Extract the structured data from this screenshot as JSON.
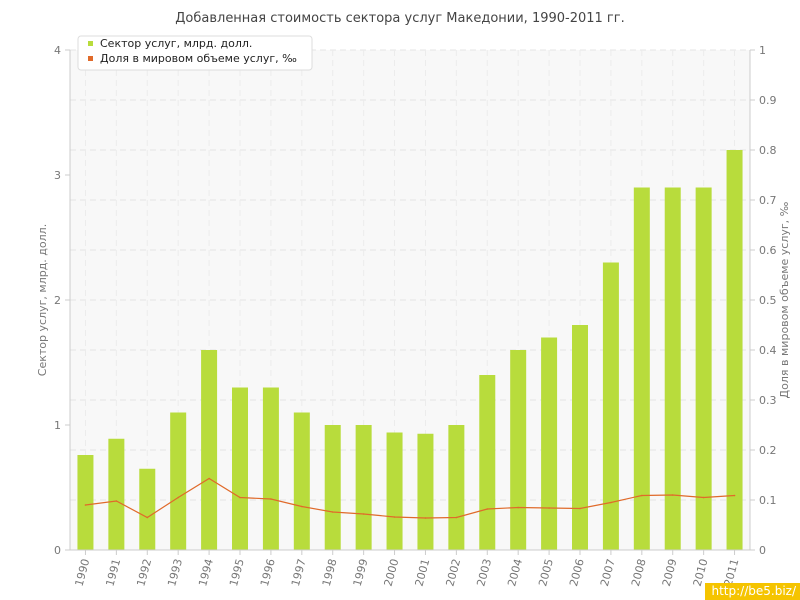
{
  "chart_data": {
    "type": "bar",
    "title": "Добавленная стоимость сектора услуг Македонии, 1990-2011 гг.",
    "categories": [
      "1990",
      "1991",
      "1992",
      "1993",
      "1994",
      "1995",
      "1996",
      "1997",
      "1998",
      "1999",
      "2000",
      "2001",
      "2002",
      "2003",
      "2004",
      "2005",
      "2006",
      "2007",
      "2008",
      "2009",
      "2010",
      "2011"
    ],
    "series": [
      {
        "name": "Сектор услуг, млрд. долл.",
        "type": "bar",
        "axis": "left",
        "color": "#b8dc3c",
        "values": [
          0.76,
          0.89,
          0.65,
          1.1,
          1.6,
          1.3,
          1.3,
          1.1,
          1.0,
          1.0,
          0.94,
          0.93,
          1.0,
          1.4,
          1.6,
          1.7,
          1.8,
          2.3,
          2.9,
          2.9,
          2.9,
          3.2
        ]
      },
      {
        "name": "Доля в мировом объеме услуг, ‰",
        "type": "line",
        "axis": "right",
        "color": "#e06a2a",
        "values": [
          0.09,
          0.098,
          0.065,
          0.105,
          0.143,
          0.105,
          0.102,
          0.087,
          0.076,
          0.072,
          0.066,
          0.064,
          0.065,
          0.082,
          0.085,
          0.084,
          0.083,
          0.095,
          0.109,
          0.11,
          0.105,
          0.109
        ]
      }
    ],
    "ylabel": "Сектор услуг, млрд. долл.",
    "ylim": [
      0,
      4
    ],
    "yticks": [
      0,
      1,
      2,
      3,
      4
    ],
    "y2label": "Доля в мировом объеме услуг, ‰",
    "y2lim": [
      0,
      1
    ],
    "y2ticks": [
      0,
      0.1,
      0.2,
      0.3,
      0.4,
      0.5,
      0.6,
      0.7,
      0.8,
      0.9,
      1
    ],
    "legend_position": "top-left",
    "grid": true
  },
  "watermark": "http://be5.biz/"
}
